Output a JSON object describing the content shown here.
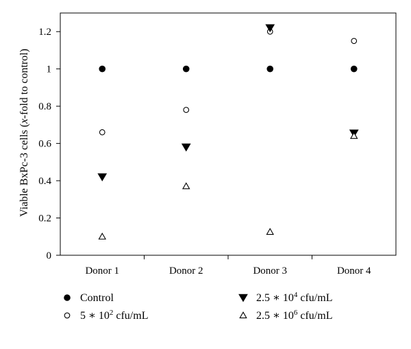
{
  "chart_data": {
    "type": "scatter",
    "categories": [
      "Donor 1",
      "Donor 2",
      "Donor 3",
      "Donor 4"
    ],
    "series": [
      {
        "name": "Control",
        "marker": "filled-circle",
        "values": [
          1.0,
          1.0,
          1.0,
          1.0
        ]
      },
      {
        "name": "5 * 10^2 cfu/mL",
        "marker": "open-circle",
        "values": [
          0.66,
          0.78,
          1.2,
          1.15
        ]
      },
      {
        "name": "2.5 * 10^4 cfu/mL",
        "marker": "filled-triangle-down",
        "values": [
          0.42,
          0.58,
          1.22,
          0.655
        ]
      },
      {
        "name": "2.5 * 10^6 cfu/mL",
        "marker": "open-triangle-up",
        "values": [
          0.1,
          0.37,
          0.125,
          0.64
        ]
      }
    ],
    "title": "",
    "xlabel": "",
    "ylabel": "Viable BxPc-3 cells (x-fold to control)",
    "ylim": [
      0,
      1.3
    ],
    "yticks": [
      0,
      0.2,
      0.4,
      0.6,
      0.8,
      1,
      1.2
    ],
    "ytick_labels": [
      "0",
      "0.2",
      "0.4",
      "0.6",
      "0.8",
      "1",
      "1.2"
    ],
    "grid": false,
    "legend_position": "bottom"
  },
  "legend": [
    {
      "base": "Control",
      "sup": "",
      "suffix": ""
    },
    {
      "base": "5 ∗ 10",
      "sup": "2",
      "suffix": " cfu/mL"
    },
    {
      "base": "2.5 ∗ 10",
      "sup": "4",
      "suffix": " cfu/mL"
    },
    {
      "base": "2.5 ∗ 10",
      "sup": "6",
      "suffix": " cfu/mL"
    }
  ],
  "ylabel_parts": {
    "pre": "Viable BxPc-3 cells (",
    "italic": "x",
    "post": "-fold to control)"
  },
  "colors": {
    "ink": "#000000",
    "background": "#ffffff"
  }
}
